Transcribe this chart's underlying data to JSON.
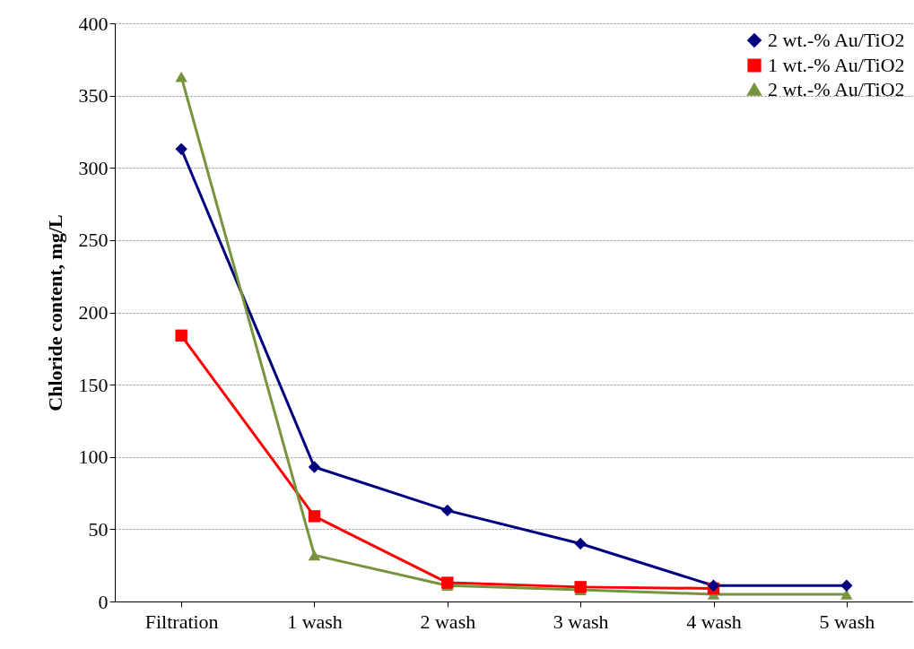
{
  "chart_data": {
    "type": "line",
    "ylabel": "Chloride  content,  mg/L",
    "categories": [
      "Filtration",
      "1 wash",
      "2 wash",
      "3 wash",
      "4 wash",
      "5 wash"
    ],
    "series": [
      {
        "name": "2 wt.-% Au/TiO2",
        "color": "#000080",
        "marker": "diamond",
        "values": [
          313,
          93,
          63,
          40,
          11,
          11
        ]
      },
      {
        "name": "1 wt.-% Au/TiO2",
        "color": "#ff0000",
        "marker": "square",
        "values": [
          184,
          59,
          13,
          10,
          9,
          null
        ]
      },
      {
        "name": "2 wt.-% Au/TiO2",
        "color": "#77933c",
        "marker": "triangle",
        "values": [
          363,
          32,
          11,
          8,
          5,
          5
        ]
      }
    ],
    "ylim": [
      0,
      400
    ],
    "yticks": [
      0,
      50,
      100,
      150,
      200,
      250,
      300,
      350,
      400
    ],
    "grid": "y",
    "legend": "top right"
  }
}
